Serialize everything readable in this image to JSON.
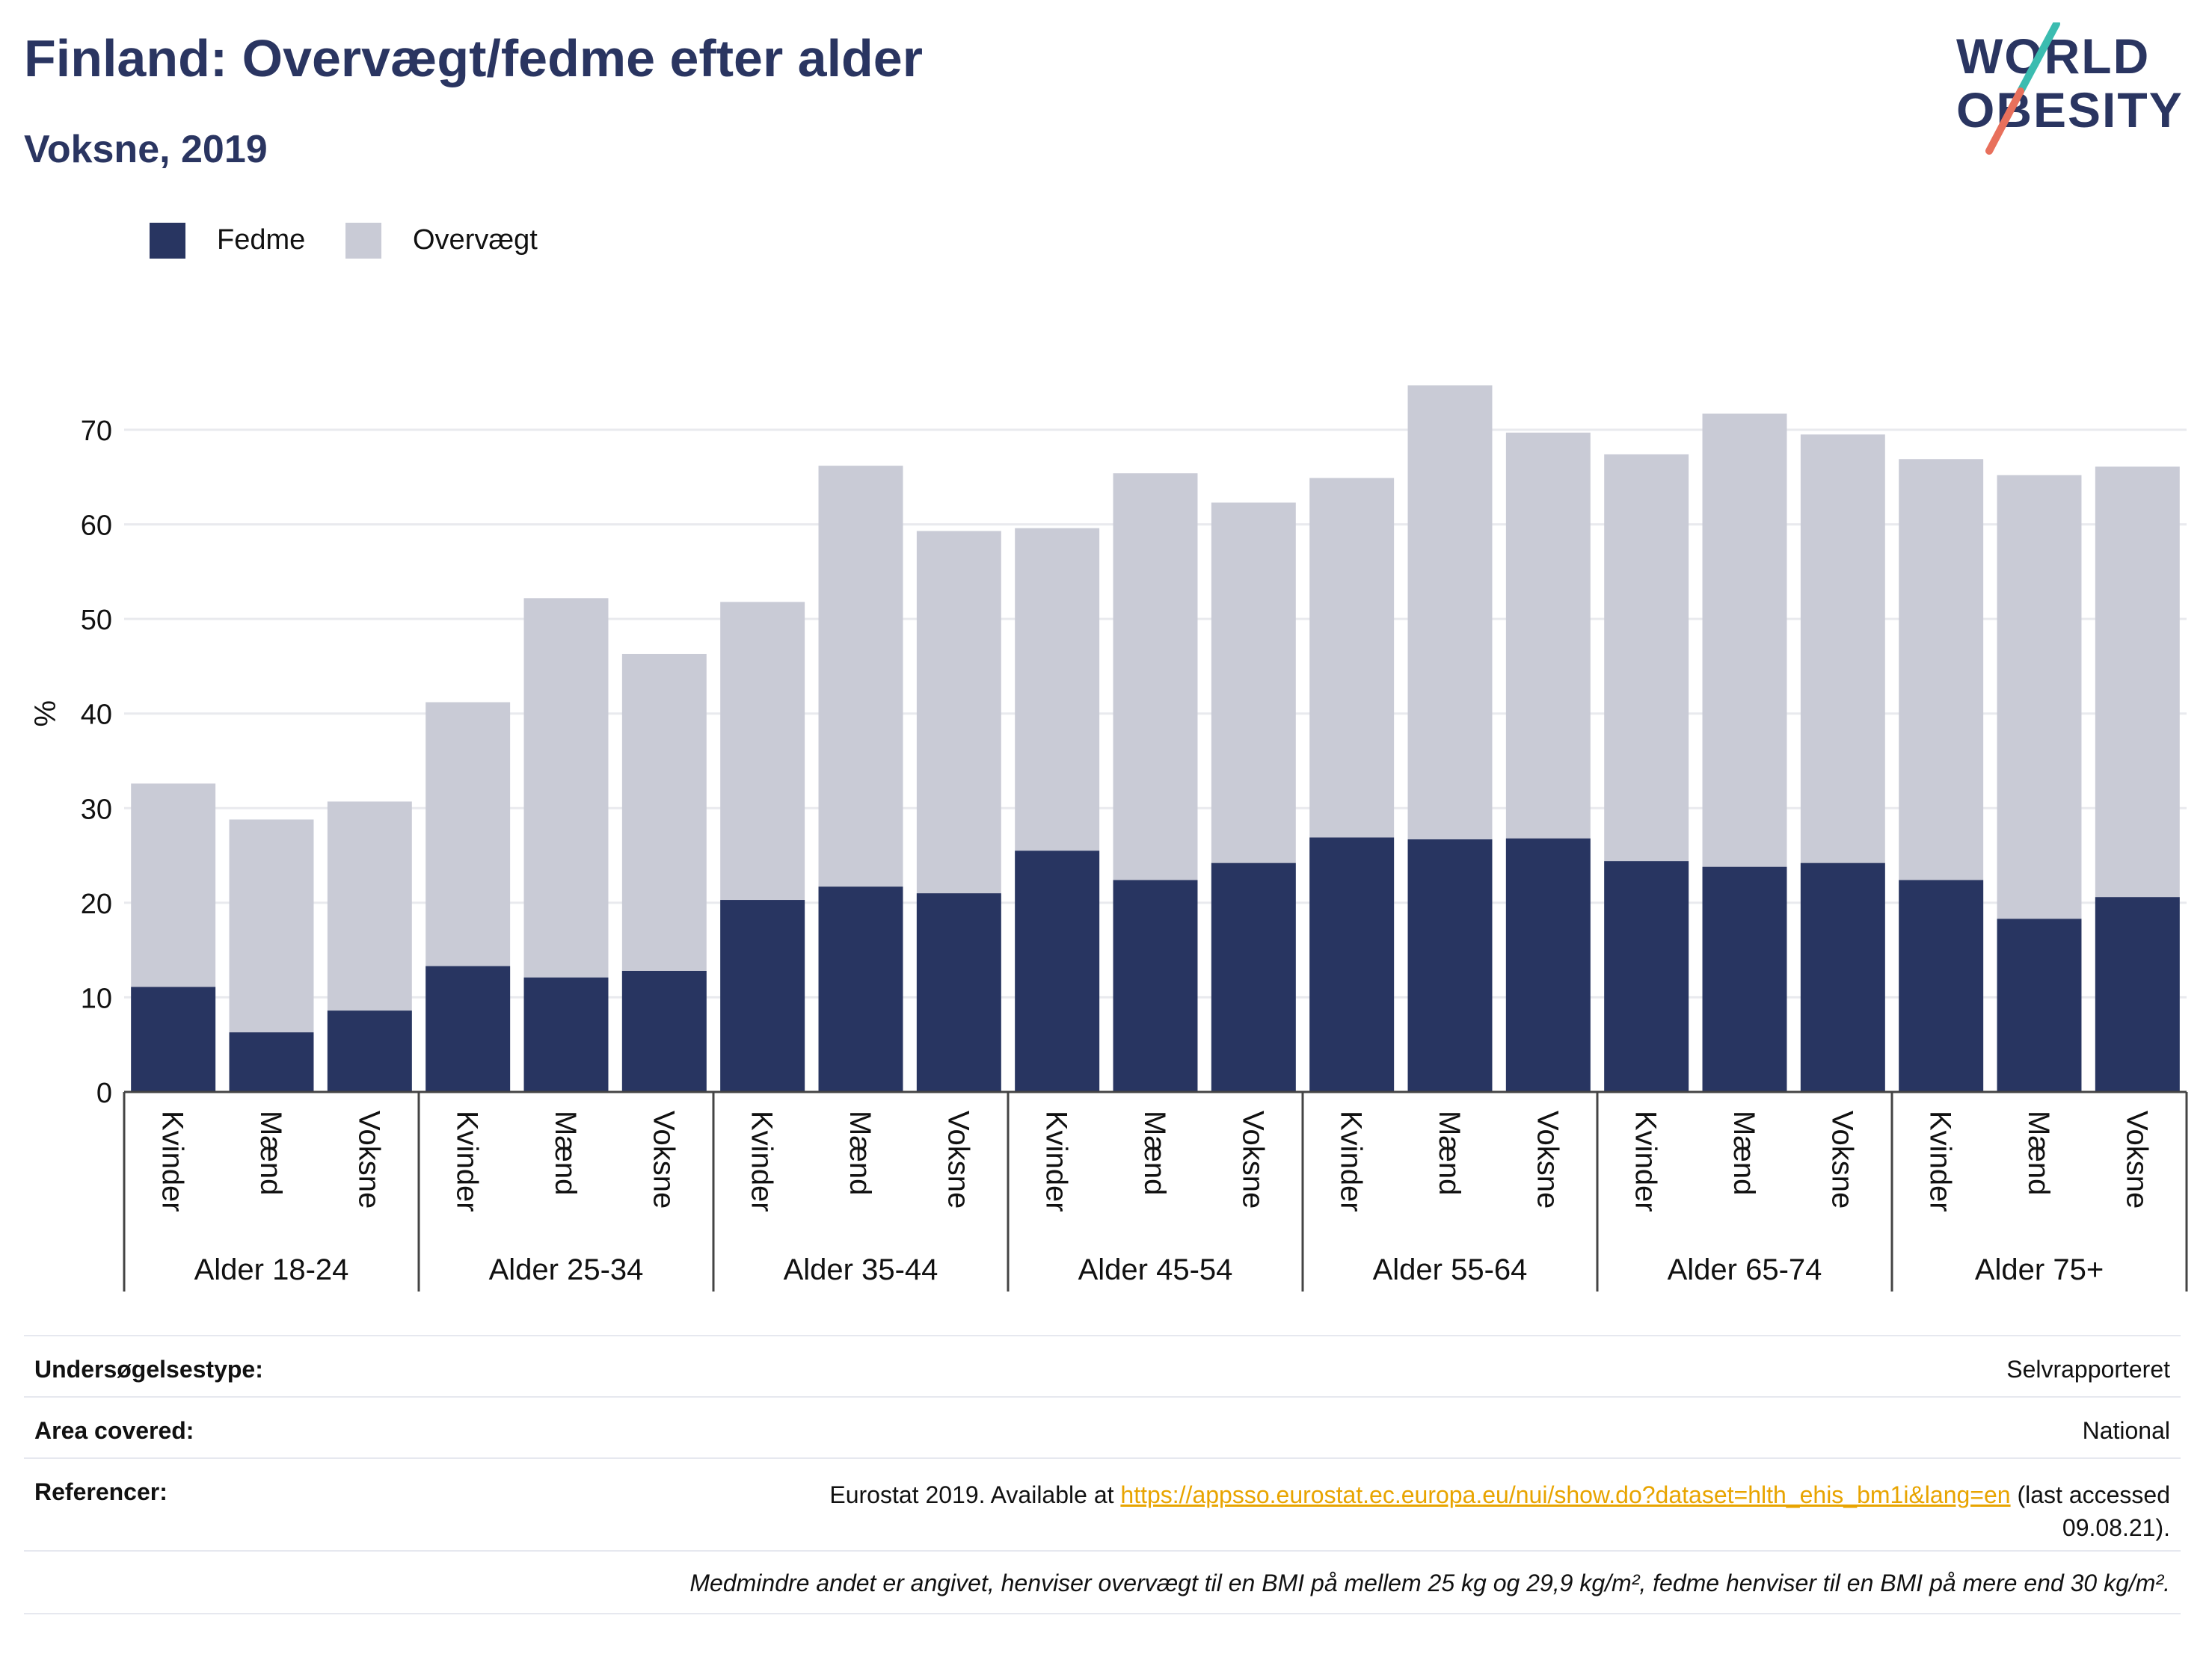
{
  "header": {
    "title": "Finland: Overvægt/fedme efter alder",
    "subtitle": "Voksne, 2019",
    "logo_line1": "WORLD",
    "logo_line2": "OBESITY"
  },
  "legend": [
    {
      "label": "Fedme",
      "color": "#283561"
    },
    {
      "label": "Overvægt",
      "color": "#c9cbd6"
    }
  ],
  "chart_data": {
    "type": "bar",
    "stacked": false,
    "overlay": true,
    "ylabel": "%",
    "ylim": [
      0,
      75
    ],
    "yticks": [
      0,
      10,
      20,
      30,
      40,
      50,
      60,
      70
    ],
    "grid": true,
    "legend_position": "top-left",
    "groups": [
      "Alder 18-24",
      "Alder 25-34",
      "Alder 35-44",
      "Alder 45-54",
      "Alder 55-64",
      "Alder 65-74",
      "Alder 75+"
    ],
    "subcategories": [
      "Kvinder",
      "Mænd",
      "Voksne"
    ],
    "series": [
      {
        "name": "Overvægt",
        "color": "#c9cbd6",
        "values": [
          32.6,
          28.8,
          30.7,
          41.2,
          52.2,
          46.3,
          51.8,
          66.2,
          59.3,
          59.6,
          65.4,
          62.3,
          64.9,
          74.7,
          69.7,
          67.4,
          71.7,
          69.5,
          66.9,
          65.2,
          66.1
        ]
      },
      {
        "name": "Fedme",
        "color": "#283561",
        "values": [
          11.1,
          6.3,
          8.6,
          13.3,
          12.1,
          12.8,
          20.3,
          21.7,
          21.0,
          25.5,
          22.4,
          24.2,
          26.9,
          26.7,
          26.8,
          24.4,
          23.8,
          24.2,
          22.4,
          18.3,
          20.6
        ]
      }
    ]
  },
  "info": {
    "rows": [
      {
        "label": "Undersøgelsestype:",
        "value": "Selvrapporteret"
      },
      {
        "label": "Area covered:",
        "value": "National"
      }
    ],
    "references": {
      "label": "Referencer:",
      "prefix": "Eurostat 2019. Available at ",
      "link": "https://appsso.eurostat.ec.europa.eu/nui/show.do?dataset=hlth_ehis_bm1i&lang=en",
      "suffix_line1": " (last accessed",
      "suffix_line2": "09.08.21)."
    },
    "note": "Medmindre andet er angivet, henviser overvægt til en BMI på mellem 25 kg og 29,9 kg/m², fedme henviser til en BMI på mere end 30 kg/m²."
  }
}
